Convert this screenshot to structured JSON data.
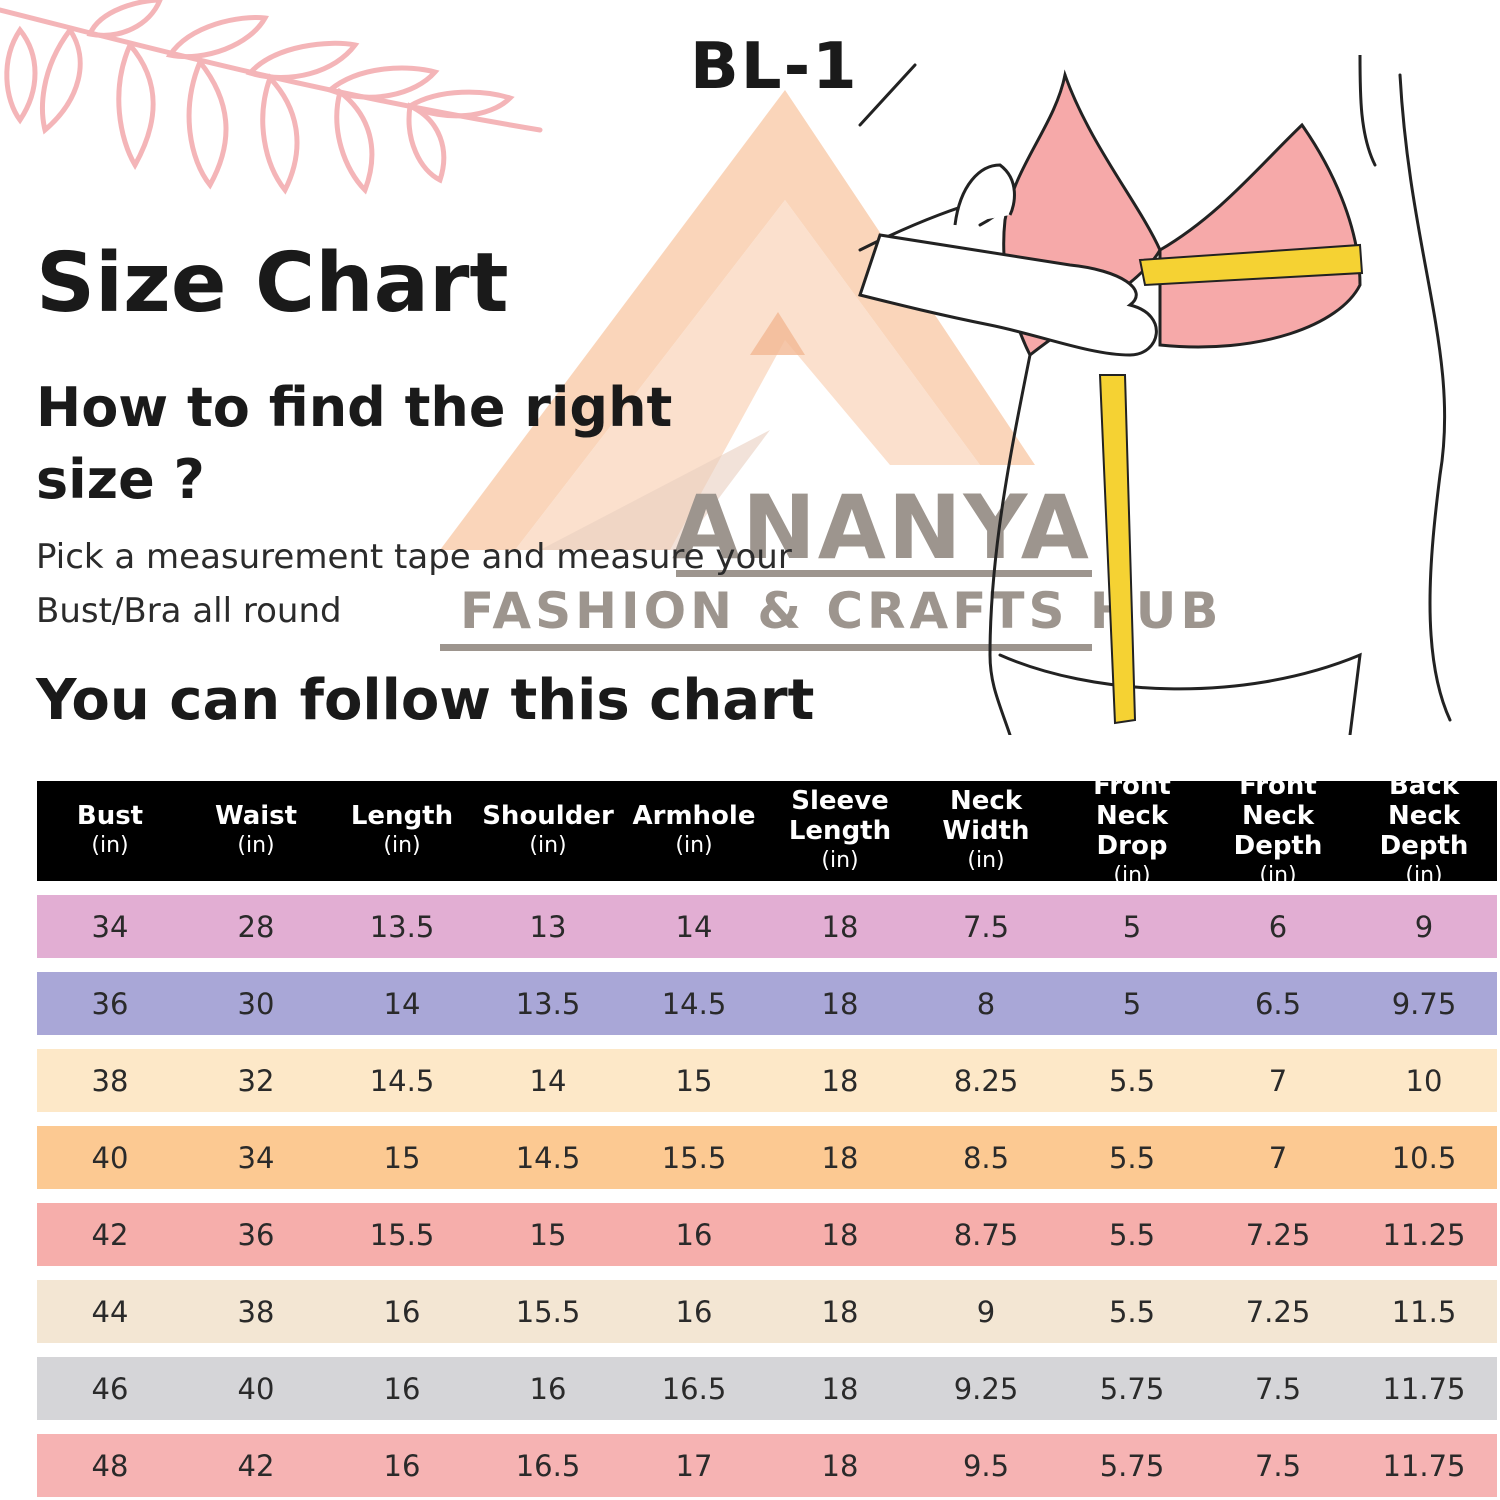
{
  "header": {
    "code": "BL-1",
    "title": "Size Chart",
    "subtitle": "How to find the right size ?",
    "instruction": "Pick a measurement tape and measure your Bust/Bra all round",
    "follow": "You can follow this chart"
  },
  "watermark": {
    "brand": "ANANYA",
    "tagline": "FASHION & CRAFTS HUB"
  },
  "table": {
    "headers": [
      {
        "name": "Bust",
        "unit": "(in)"
      },
      {
        "name": "Waist",
        "unit": "(in)"
      },
      {
        "name": "Length",
        "unit": "(in)"
      },
      {
        "name": "Shoulder",
        "unit": "(in)"
      },
      {
        "name": "Armhole",
        "unit": "(in)"
      },
      {
        "name": "Sleeve Length",
        "unit": "(in)"
      },
      {
        "name": "Neck Width",
        "unit": "(in)"
      },
      {
        "name": "Front Neck Drop",
        "unit": "(in)"
      },
      {
        "name": "Front Neck Depth",
        "unit": "(in)"
      },
      {
        "name": "Back Neck Depth",
        "unit": "(in)"
      }
    ],
    "rows": [
      {
        "color": "#e2aed3",
        "values": [
          "34",
          "28",
          "13.5",
          "13",
          "14",
          "18",
          "7.5",
          "5",
          "6",
          "9"
        ]
      },
      {
        "color": "#a9a7d7",
        "values": [
          "36",
          "30",
          "14",
          "13.5",
          "14.5",
          "18",
          "8",
          "5",
          "6.5",
          "9.75"
        ]
      },
      {
        "color": "#fde8c8",
        "values": [
          "38",
          "32",
          "14.5",
          "14",
          "15",
          "18",
          "8.25",
          "5.5",
          "7",
          "10"
        ]
      },
      {
        "color": "#fcc992",
        "values": [
          "40",
          "34",
          "15",
          "14.5",
          "15.5",
          "18",
          "8.5",
          "5.5",
          "7",
          "10.5"
        ]
      },
      {
        "color": "#f6aeab",
        "values": [
          "42",
          "36",
          "15.5",
          "15",
          "16",
          "18",
          "8.75",
          "5.5",
          "7.25",
          "11.25"
        ]
      },
      {
        "color": "#f3e6d3",
        "values": [
          "44",
          "38",
          "16",
          "15.5",
          "16",
          "18",
          "9",
          "5.5",
          "7.25",
          "11.5"
        ]
      },
      {
        "color": "#d5d5d8",
        "values": [
          "46",
          "40",
          "16",
          "16",
          "16.5",
          "18",
          "9.25",
          "5.75",
          "7.5",
          "11.75"
        ]
      },
      {
        "color": "#f6b3b3",
        "values": [
          "48",
          "42",
          "16",
          "16.5",
          "17",
          "18",
          "9.5",
          "5.75",
          "7.5",
          "11.75"
        ]
      }
    ]
  },
  "colors": {
    "leaf": "#f4b5b8",
    "watermark_peach": "#f8c7a3",
    "watermark_gray": "#9d958e",
    "bra": "#f6a9a9",
    "tape": "#f5d233"
  },
  "icons": [
    "leaves-decoration",
    "ananya-logo-watermark",
    "bust-measuring-illustration"
  ]
}
